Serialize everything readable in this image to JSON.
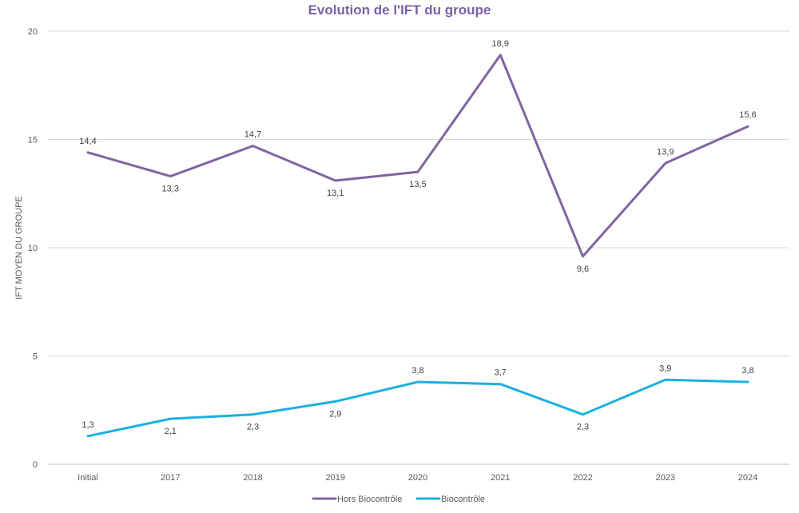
{
  "chart_data": {
    "type": "line",
    "title": "Evolution de l'IFT du groupe",
    "title_color": "#7c5fa5",
    "xlabel": "",
    "ylabel": "IFT MOYEN DU GROUPE",
    "ylim": [
      0,
      20
    ],
    "yticks": [
      0,
      5,
      10,
      15,
      20
    ],
    "ytick_labels": [
      "0",
      "5",
      "10",
      "15",
      "20"
    ],
    "grid": true,
    "legend_position": "bottom",
    "categories": [
      "Initial",
      "2017",
      "2018",
      "2019",
      "2020",
      "2021",
      "2022",
      "2023",
      "2024"
    ],
    "series": [
      {
        "name": "Hors Biocontrôle",
        "color": "#8064a2",
        "values": [
          14.4,
          13.3,
          14.7,
          13.1,
          13.5,
          18.9,
          9.6,
          13.9,
          15.6
        ],
        "labels": [
          "14,4",
          "13,3",
          "14,7",
          "13,1",
          "13,5",
          "18,9",
          "9,6",
          "13,9",
          "15,6"
        ],
        "label_side": [
          "above",
          "below",
          "above",
          "below",
          "below",
          "above",
          "below",
          "above",
          "above"
        ]
      },
      {
        "name": "Biocontrôle",
        "color": "#1cb0e0",
        "values": [
          1.3,
          2.1,
          2.3,
          2.9,
          3.8,
          3.7,
          2.3,
          3.9,
          3.8
        ],
        "labels": [
          "1,3",
          "2,1",
          "2,3",
          "2,9",
          "3,8",
          "3,7",
          "2,3",
          "3,9",
          "3,8"
        ],
        "label_side": [
          "above",
          "below",
          "below",
          "below",
          "above",
          "above",
          "below",
          "above",
          "above"
        ]
      }
    ]
  }
}
